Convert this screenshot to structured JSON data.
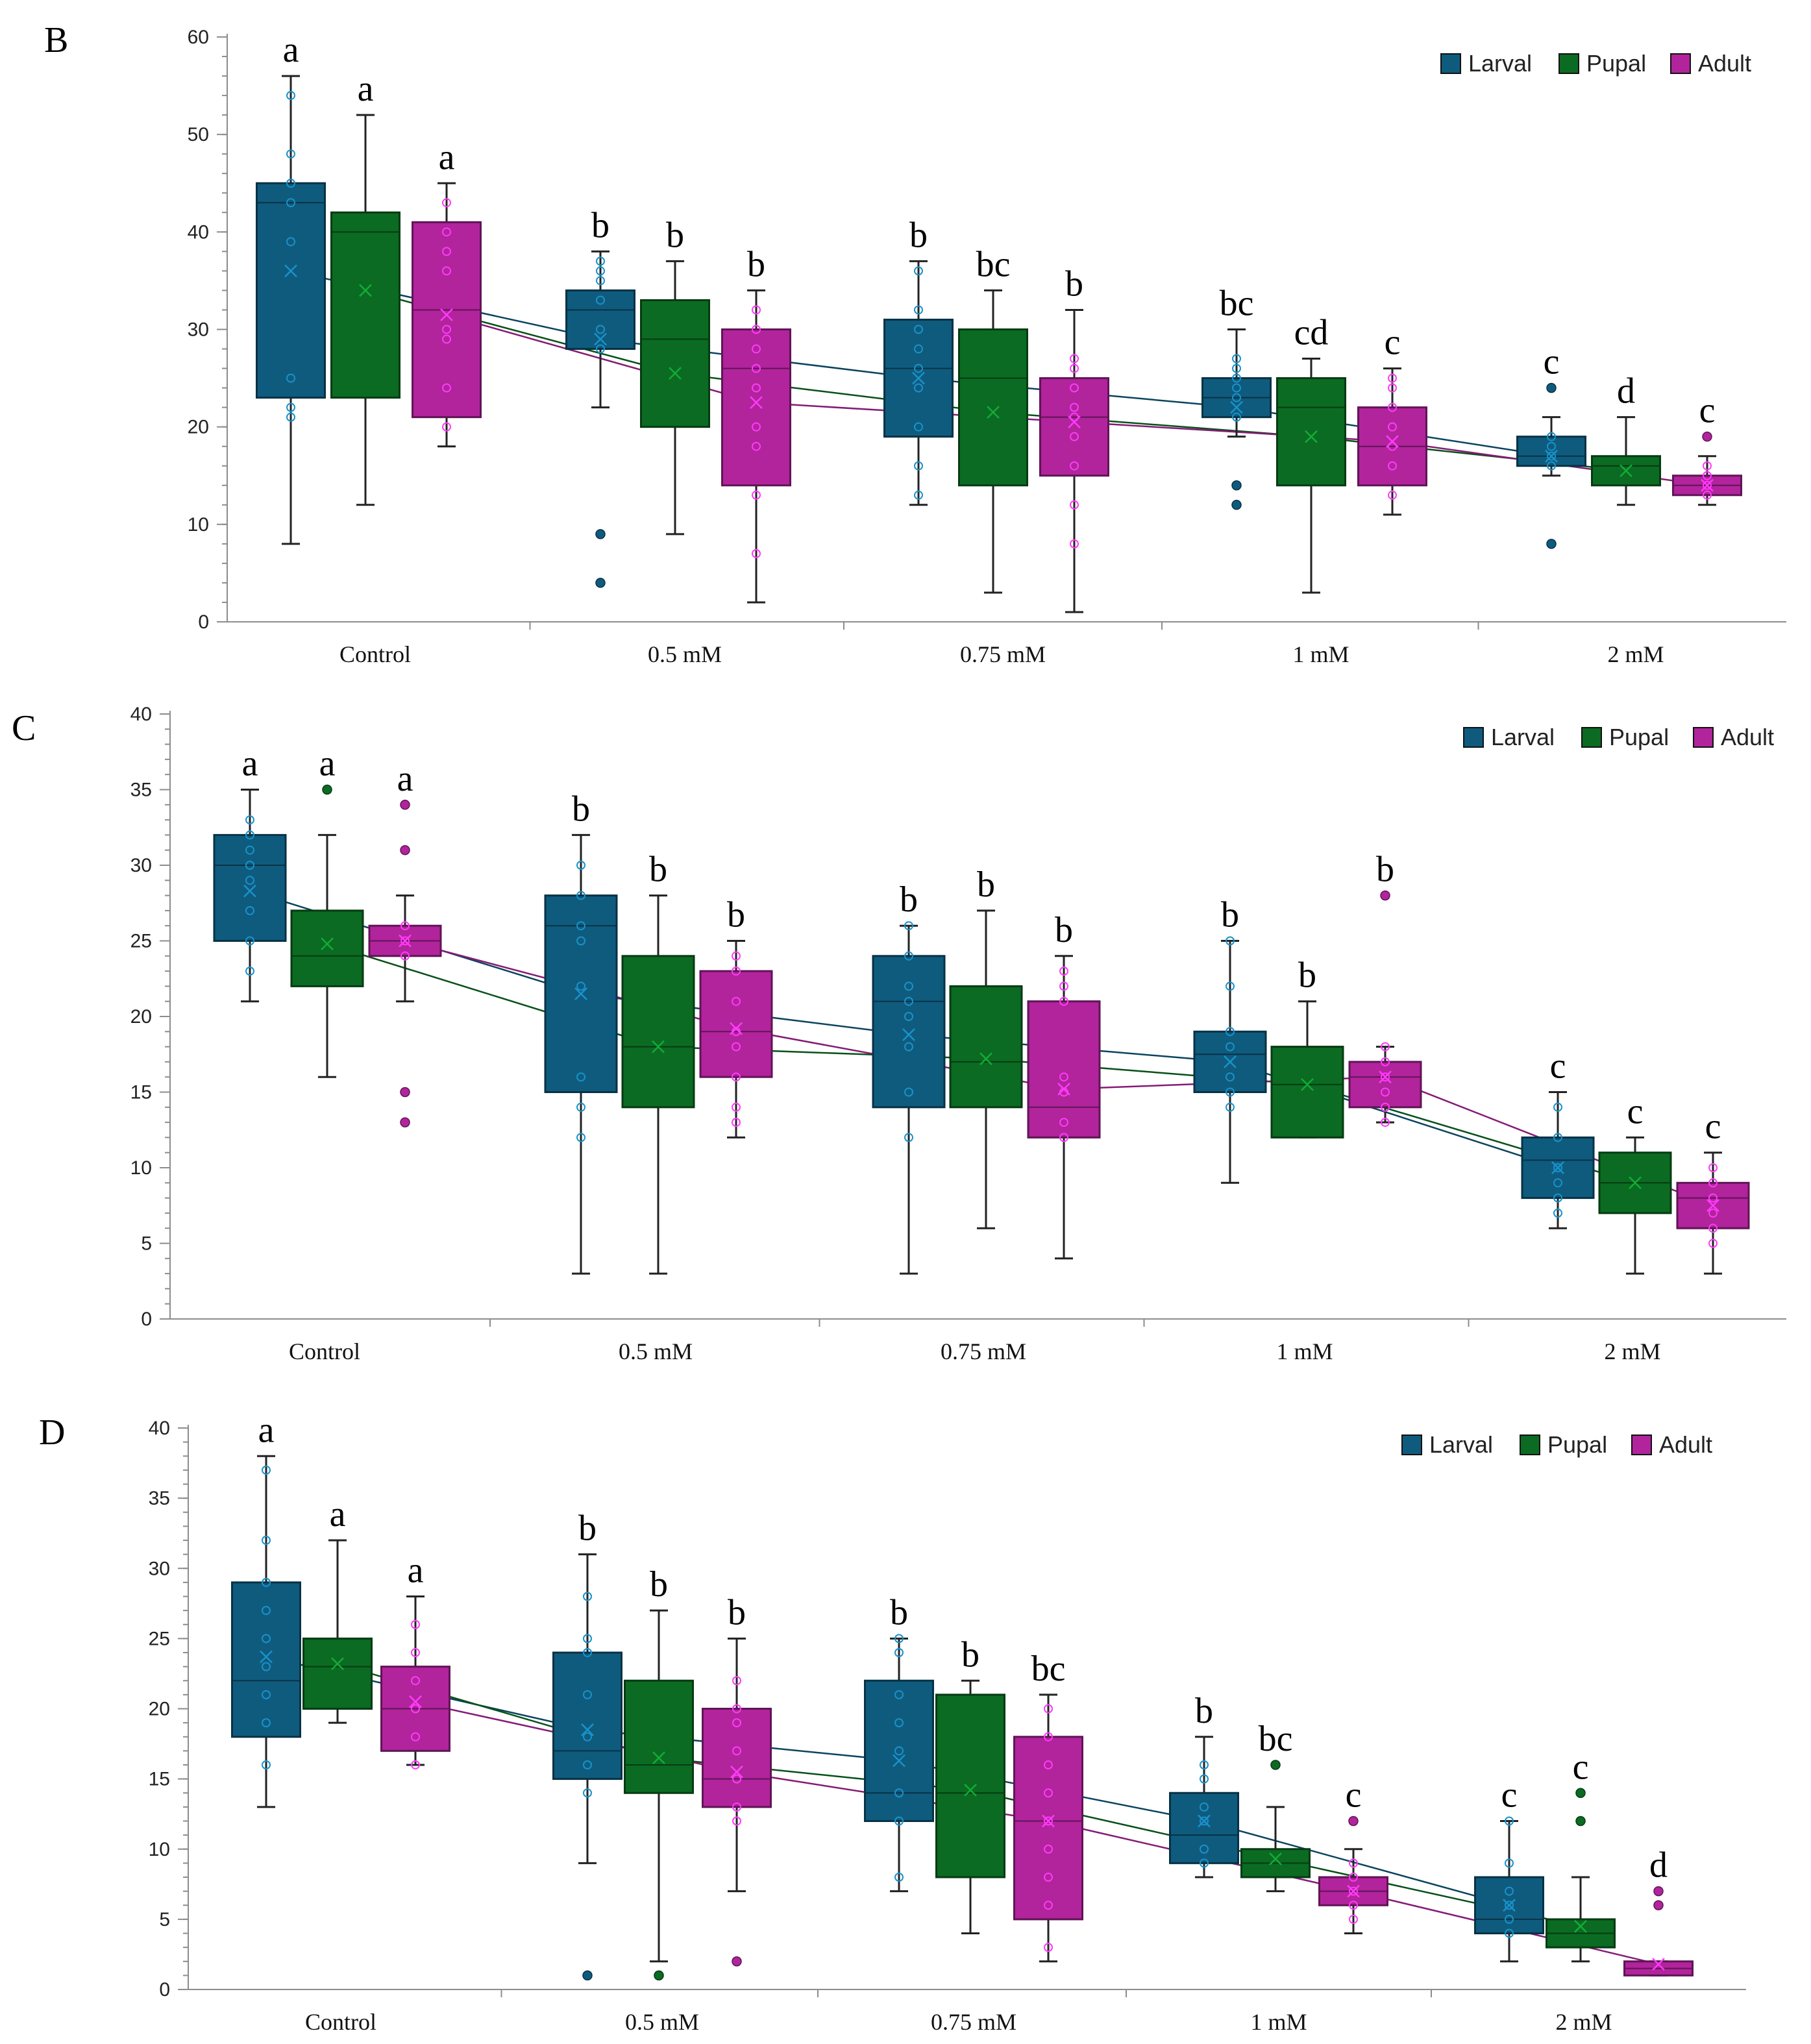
{
  "colors": {
    "Larval": "#0f5b7e",
    "Pupal": "#0b6b22",
    "Adult": "#b1249c",
    "axis": "#8c8c8c",
    "text": "#222222"
  },
  "chart_data": [
    {
      "panel": "B",
      "type": "box",
      "title": "",
      "xlabel": "",
      "ylabel": "",
      "ylim": [
        0,
        60
      ],
      "yticks": [
        0,
        10,
        20,
        30,
        40,
        50,
        60
      ],
      "ytick_labels": [
        "0",
        "10",
        "20",
        "30",
        "40",
        "50",
        "60"
      ],
      "categories": [
        "Control",
        "0.5 mM",
        "0.75 mM",
        "1 mM",
        "2 mM"
      ],
      "legend": [
        "Larval",
        "Pupal",
        "Adult"
      ],
      "legend_position": "top-right",
      "series": [
        {
          "name": "Larval",
          "boxes": [
            {
              "min": 8,
              "q1": 23,
              "median": 43,
              "q3": 45,
              "max": 56,
              "mean": 36,
              "label": "a",
              "outliers": [],
              "points": [
                21,
                22,
                25,
                39,
                43,
                45,
                48,
                54
              ]
            },
            {
              "min": 22,
              "q1": 28,
              "median": 32,
              "q3": 34,
              "max": 38,
              "mean": 29,
              "label": "b",
              "outliers": [
                4,
                9
              ],
              "points": [
                28,
                30,
                33,
                35,
                36,
                37
              ]
            },
            {
              "min": 12,
              "q1": 19,
              "median": 26,
              "q3": 31,
              "max": 37,
              "mean": 25,
              "label": "b",
              "outliers": [],
              "points": [
                13,
                16,
                20,
                24,
                26,
                28,
                30,
                32,
                36
              ]
            },
            {
              "min": 19,
              "q1": 21,
              "median": 23,
              "q3": 25,
              "max": 30,
              "mean": 22,
              "label": "bc",
              "outliers": [
                12,
                14
              ],
              "points": [
                21,
                23,
                24,
                25,
                26,
                27
              ]
            },
            {
              "min": 15,
              "q1": 16,
              "median": 17,
              "q3": 19,
              "max": 21,
              "mean": 17,
              "label": "c",
              "outliers": [
                8,
                24
              ],
              "points": [
                16,
                17,
                18,
                19
              ]
            }
          ]
        },
        {
          "name": "Pupal",
          "boxes": [
            {
              "min": 12,
              "q1": 23,
              "median": 40,
              "q3": 42,
              "max": 52,
              "mean": 34,
              "label": "a",
              "outliers": [],
              "points": []
            },
            {
              "min": 9,
              "q1": 20,
              "median": 29,
              "q3": 33,
              "max": 37,
              "mean": 25.5,
              "label": "b",
              "outliers": [],
              "points": []
            },
            {
              "min": 3,
              "q1": 14,
              "median": 25,
              "q3": 30,
              "max": 34,
              "mean": 21.5,
              "label": "bc",
              "outliers": [],
              "points": []
            },
            {
              "min": 3,
              "q1": 14,
              "median": 22,
              "q3": 25,
              "max": 27,
              "mean": 19,
              "label": "cd",
              "outliers": [],
              "points": []
            },
            {
              "min": 12,
              "q1": 14,
              "median": 16,
              "q3": 17,
              "max": 21,
              "mean": 15.5,
              "label": "d",
              "outliers": [],
              "points": []
            }
          ]
        },
        {
          "name": "Adult",
          "boxes": [
            {
              "min": 18,
              "q1": 21,
              "median": 32,
              "q3": 41,
              "max": 45,
              "mean": 31.5,
              "label": "a",
              "outliers": [],
              "points": [
                20,
                24,
                29,
                30,
                36,
                38,
                40,
                43
              ]
            },
            {
              "min": 2,
              "q1": 14,
              "median": 26,
              "q3": 30,
              "max": 34,
              "mean": 22.5,
              "label": "b",
              "outliers": [],
              "points": [
                7,
                13,
                18,
                20,
                24,
                26,
                28,
                30,
                32
              ]
            },
            {
              "min": 1,
              "q1": 15,
              "median": 21,
              "q3": 25,
              "max": 32,
              "mean": 20.5,
              "label": "b",
              "outliers": [],
              "points": [
                8,
                12,
                16,
                19,
                21,
                22,
                24,
                26,
                27
              ]
            },
            {
              "min": 11,
              "q1": 14,
              "median": 18,
              "q3": 22,
              "max": 26,
              "mean": 18.5,
              "label": "c",
              "outliers": [],
              "points": [
                13,
                16,
                18,
                20,
                22,
                24,
                25
              ]
            },
            {
              "min": 12,
              "q1": 13,
              "median": 14,
              "q3": 15,
              "max": 17,
              "mean": 14,
              "label": "c",
              "outliers": [
                19
              ],
              "points": [
                13,
                14,
                15,
                16
              ]
            }
          ]
        }
      ]
    },
    {
      "panel": "C",
      "type": "box",
      "title": "",
      "xlabel": "",
      "ylabel": "",
      "ylim": [
        0,
        40
      ],
      "yticks": [
        0,
        5,
        10,
        15,
        20,
        25,
        30,
        35,
        40
      ],
      "ytick_labels": [
        "0",
        "5",
        "10",
        "15",
        "20",
        "25",
        "30",
        "35",
        "40"
      ],
      "categories": [
        "Control",
        "0.5 mM",
        "0.75 mM",
        "1 mM",
        "2 mM"
      ],
      "legend": [
        "Larval",
        "Pupal",
        "Adult"
      ],
      "legend_position": "top-right",
      "series": [
        {
          "name": "Larval",
          "boxes": [
            {
              "min": 21,
              "q1": 25,
              "median": 30,
              "q3": 32,
              "max": 35,
              "mean": 28.3,
              "label": "a",
              "outliers": [],
              "points": [
                23,
                25,
                27,
                29,
                30,
                31,
                32,
                33
              ]
            },
            {
              "min": 3,
              "q1": 15,
              "median": 26,
              "q3": 28,
              "max": 32,
              "mean": 21.5,
              "label": "b",
              "outliers": [],
              "points": [
                12,
                14,
                16,
                22,
                25,
                26,
                28,
                30
              ]
            },
            {
              "min": 3,
              "q1": 14,
              "median": 21,
              "q3": 24,
              "max": 26,
              "mean": 18.8,
              "label": "b",
              "outliers": [],
              "points": [
                12,
                15,
                18,
                20,
                21,
                22,
                24,
                26
              ]
            },
            {
              "min": 9,
              "q1": 15,
              "median": 17.5,
              "q3": 19,
              "max": 25,
              "mean": 17,
              "label": "b",
              "outliers": [],
              "points": [
                14,
                15,
                16,
                18,
                19,
                22,
                25
              ]
            },
            {
              "min": 6,
              "q1": 8,
              "median": 10.5,
              "q3": 12,
              "max": 15,
              "mean": 10,
              "label": "c",
              "outliers": [],
              "points": [
                7,
                8,
                9,
                10,
                12,
                14
              ]
            }
          ]
        },
        {
          "name": "Pupal",
          "boxes": [
            {
              "min": 16,
              "q1": 22,
              "median": 24,
              "q3": 27,
              "max": 32,
              "mean": 24.8,
              "label": "a",
              "outliers": [
                35
              ],
              "points": []
            },
            {
              "min": 3,
              "q1": 14,
              "median": 18,
              "q3": 24,
              "max": 28,
              "mean": 18,
              "label": "b",
              "outliers": [],
              "points": []
            },
            {
              "min": 6,
              "q1": 14,
              "median": 17,
              "q3": 22,
              "max": 27,
              "mean": 17.2,
              "label": "b",
              "outliers": [],
              "points": []
            },
            {
              "min": 12,
              "q1": 12,
              "median": 15.5,
              "q3": 18,
              "max": 21,
              "mean": 15.5,
              "label": "b",
              "outliers": [],
              "points": []
            },
            {
              "min": 3,
              "q1": 7,
              "median": 9,
              "q3": 11,
              "max": 12,
              "mean": 9,
              "label": "c",
              "outliers": [],
              "points": []
            }
          ]
        },
        {
          "name": "Adult",
          "boxes": [
            {
              "min": 21,
              "q1": 24,
              "median": 25,
              "q3": 26,
              "max": 28,
              "mean": 25,
              "label": "a",
              "outliers": [
                13,
                15,
                31,
                34
              ],
              "points": [
                24,
                25,
                26
              ]
            },
            {
              "min": 12,
              "q1": 16,
              "median": 19,
              "q3": 23,
              "max": 25,
              "mean": 19.2,
              "label": "b",
              "outliers": [],
              "points": [
                13,
                14,
                16,
                18,
                19,
                21,
                23,
                24
              ]
            },
            {
              "min": 4,
              "q1": 12,
              "median": 14,
              "q3": 21,
              "max": 24,
              "mean": 15.2,
              "label": "b",
              "outliers": [],
              "points": [
                12,
                13,
                15,
                16,
                21,
                22,
                23
              ]
            },
            {
              "min": 13,
              "q1": 14,
              "median": 16,
              "q3": 17,
              "max": 18,
              "mean": 16,
              "label": "b",
              "outliers": [
                28
              ],
              "points": [
                13,
                14,
                15,
                16,
                17,
                18
              ]
            },
            {
              "min": 3,
              "q1": 6,
              "median": 8,
              "q3": 9,
              "max": 11,
              "mean": 7.5,
              "label": "c",
              "outliers": [],
              "points": [
                5,
                6,
                7,
                8,
                9,
                10
              ]
            }
          ]
        }
      ]
    },
    {
      "panel": "D",
      "type": "box",
      "title": "",
      "xlabel": "",
      "ylabel": "",
      "ylim": [
        0,
        40
      ],
      "yticks": [
        0,
        5,
        10,
        15,
        20,
        25,
        30,
        35,
        40
      ],
      "ytick_labels": [
        "0",
        "5",
        "10",
        "15",
        "20",
        "25",
        "30",
        "35",
        "40"
      ],
      "categories": [
        "Control",
        "0.5 mM",
        "0.75 mM",
        "1 mM",
        "2 mM"
      ],
      "legend": [
        "Larval",
        "Pupal",
        "Adult"
      ],
      "legend_position": "top-right",
      "series": [
        {
          "name": "Larval",
          "boxes": [
            {
              "min": 13,
              "q1": 18,
              "median": 22,
              "q3": 29,
              "max": 38,
              "mean": 23.7,
              "label": "a",
              "outliers": [],
              "points": [
                16,
                19,
                21,
                23,
                25,
                27,
                29,
                32,
                37
              ]
            },
            {
              "min": 9,
              "q1": 15,
              "median": 17,
              "q3": 24,
              "max": 31,
              "mean": 18.5,
              "label": "b",
              "outliers": [
                1
              ],
              "points": [
                14,
                16,
                18,
                21,
                24,
                25,
                28
              ]
            },
            {
              "min": 7,
              "q1": 12,
              "median": 14,
              "q3": 22,
              "max": 25,
              "mean": 16.3,
              "label": "b",
              "outliers": [],
              "points": [
                8,
                12,
                14,
                17,
                19,
                21,
                24,
                25
              ]
            },
            {
              "min": 8,
              "q1": 9,
              "median": 11,
              "q3": 14,
              "max": 18,
              "mean": 12,
              "label": "b",
              "outliers": [],
              "points": [
                9,
                10,
                12,
                13,
                15,
                16
              ]
            },
            {
              "min": 2,
              "q1": 4,
              "median": 5,
              "q3": 8,
              "max": 12,
              "mean": 6,
              "label": "c",
              "outliers": [],
              "points": [
                4,
                5,
                6,
                7,
                9,
                12
              ]
            }
          ]
        },
        {
          "name": "Pupal",
          "boxes": [
            {
              "min": 19,
              "q1": 20,
              "median": 23,
              "q3": 25,
              "max": 32,
              "mean": 23.2,
              "label": "a",
              "outliers": [],
              "points": []
            },
            {
              "min": 2,
              "q1": 14,
              "median": 16,
              "q3": 22,
              "max": 27,
              "mean": 16.5,
              "label": "b",
              "outliers": [
                1
              ],
              "points": []
            },
            {
              "min": 4,
              "q1": 8,
              "median": 14,
              "q3": 21,
              "max": 22,
              "mean": 14.2,
              "label": "b",
              "outliers": [],
              "points": []
            },
            {
              "min": 7,
              "q1": 8,
              "median": 9,
              "q3": 10,
              "max": 13,
              "mean": 9.3,
              "label": "bc",
              "outliers": [
                16
              ],
              "points": []
            },
            {
              "min": 2,
              "q1": 3,
              "median": 4,
              "q3": 5,
              "max": 8,
              "mean": 4.5,
              "label": "c",
              "outliers": [
                12,
                14
              ],
              "points": []
            }
          ]
        },
        {
          "name": "Adult",
          "boxes": [
            {
              "min": 16,
              "q1": 17,
              "median": 20,
              "q3": 23,
              "max": 28,
              "mean": 20.5,
              "label": "a",
              "outliers": [],
              "points": [
                16,
                18,
                20,
                22,
                24,
                26
              ]
            },
            {
              "min": 7,
              "q1": 13,
              "median": 15,
              "q3": 20,
              "max": 25,
              "mean": 15.5,
              "label": "b",
              "outliers": [
                2
              ],
              "points": [
                12,
                13,
                15,
                17,
                19,
                20,
                22
              ]
            },
            {
              "min": 2,
              "q1": 5,
              "median": 12,
              "q3": 18,
              "max": 21,
              "mean": 12,
              "label": "bc",
              "outliers": [],
              "points": [
                3,
                6,
                8,
                10,
                12,
                14,
                16,
                18,
                20
              ]
            },
            {
              "min": 4,
              "q1": 6,
              "median": 7,
              "q3": 8,
              "max": 10,
              "mean": 7,
              "label": "c",
              "outliers": [
                12
              ],
              "points": [
                5,
                6,
                7,
                8,
                9
              ]
            },
            {
              "min": 1,
              "q1": 1,
              "median": 1.5,
              "q3": 2,
              "max": 2,
              "mean": 1.8,
              "label": "d",
              "outliers": [
                6,
                7
              ],
              "points": []
            }
          ]
        }
      ]
    }
  ]
}
